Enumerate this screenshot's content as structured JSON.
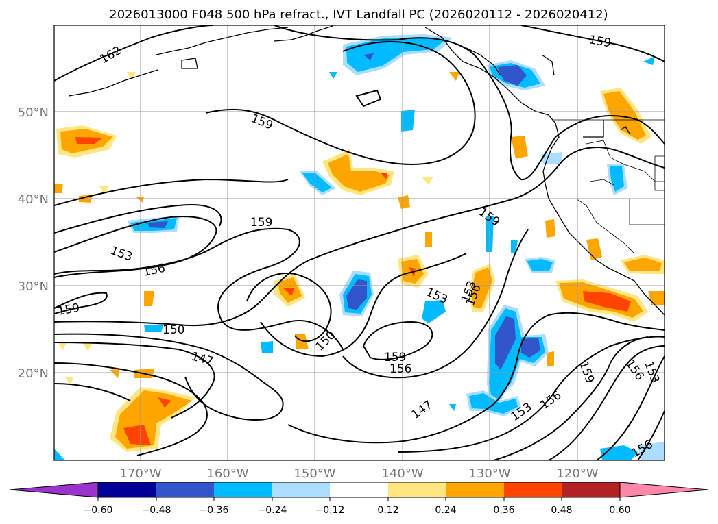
{
  "title": "2026013000 F048 500 hPa refract., IVT Landfall PC (2026020112 - 2026020412)",
  "map": {
    "lat_labels": [
      "50°N",
      "40°N",
      "30°N",
      "20°N"
    ],
    "lon_labels": [
      "170°W",
      "160°W",
      "150°W",
      "140°W",
      "130°W",
      "120°W"
    ],
    "contour_labels": [
      "162",
      "159",
      "159",
      "159",
      "159",
      "153",
      "156",
      "159",
      "150",
      "147",
      "150",
      "159",
      "156",
      "147",
      "153",
      "156",
      "153",
      "156",
      "153",
      "159",
      "156",
      "153",
      "156"
    ]
  },
  "colorbar": {
    "ticks": [
      "−0.60",
      "−0.48",
      "−0.36",
      "−0.24",
      "−0.12",
      "0.12",
      "0.24",
      "0.36",
      "0.48",
      "0.60"
    ],
    "colors": [
      "#9933cc",
      "#000099",
      "#3355cc",
      "#00bbff",
      "#aaddff",
      "#ffffff",
      "#ffe680",
      "#ffa500",
      "#ff4400",
      "#b22222",
      "#ff88aa"
    ]
  }
}
